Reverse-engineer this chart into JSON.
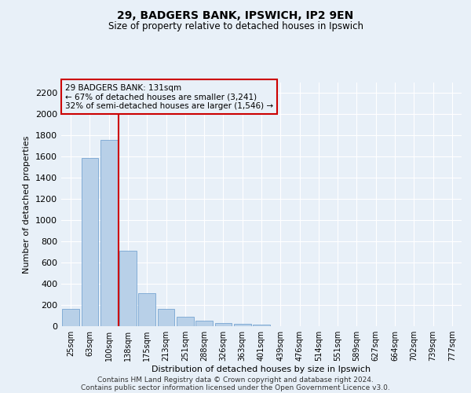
{
  "title1": "29, BADGERS BANK, IPSWICH, IP2 9EN",
  "title2": "Size of property relative to detached houses in Ipswich",
  "xlabel": "Distribution of detached houses by size in Ipswich",
  "ylabel": "Number of detached properties",
  "footer1": "Contains HM Land Registry data © Crown copyright and database right 2024.",
  "footer2": "Contains public sector information licensed under the Open Government Licence v3.0.",
  "categories": [
    "25sqm",
    "63sqm",
    "100sqm",
    "138sqm",
    "175sqm",
    "213sqm",
    "251sqm",
    "288sqm",
    "326sqm",
    "363sqm",
    "401sqm",
    "439sqm",
    "476sqm",
    "514sqm",
    "551sqm",
    "589sqm",
    "627sqm",
    "664sqm",
    "702sqm",
    "739sqm",
    "777sqm"
  ],
  "values": [
    160,
    1590,
    1760,
    710,
    315,
    160,
    90,
    55,
    30,
    20,
    15,
    0,
    0,
    0,
    0,
    0,
    0,
    0,
    0,
    0,
    0
  ],
  "bar_color": "#b8d0e8",
  "bar_edgecolor": "#6699cc",
  "vline_x_idx": 2,
  "vline_color": "#cc0000",
  "annotation_text": "29 BADGERS BANK: 131sqm\n← 67% of detached houses are smaller (3,241)\n32% of semi-detached houses are larger (1,546) →",
  "annotation_box_color": "#cc0000",
  "ylim": [
    0,
    2300
  ],
  "bg_color": "#e8f0f8",
  "grid_color": "#ffffff",
  "yticks": [
    0,
    200,
    400,
    600,
    800,
    1000,
    1200,
    1400,
    1600,
    1800,
    2000,
    2200
  ]
}
